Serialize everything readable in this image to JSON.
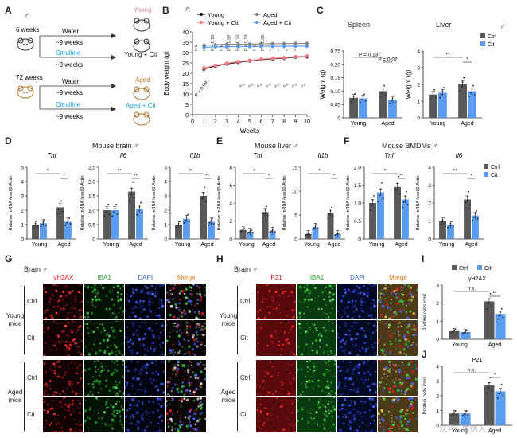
{
  "symbols": {
    "male": "♂"
  },
  "colors": {
    "ctrl": "#595959",
    "cit": "#5b9bf0",
    "young": "#111111",
    "aged": "#888888",
    "young_cit": "#f07a80",
    "aged_cit": "#5b9bf0",
    "cit_text": "#1aa3e0",
    "young_pink": "#f2879a",
    "aged_brown": "#b0742a"
  },
  "panelA": {
    "label": "A",
    "g1": {
      "age": "6 weeks",
      "water": "Water",
      "w1": "~9 weeks",
      "cit": "Citrulline",
      "w2": "~9 weeks",
      "out1": "Young",
      "out2": "Young + Cit"
    },
    "g2": {
      "age": "72 weeks",
      "water": "Water",
      "w1": "~9 weeks",
      "cit": "Citrulline",
      "w2": "~9 weeks",
      "out1": "Aged",
      "out2": "Aged + Cit"
    }
  },
  "panelB": {
    "label": "B",
    "ylabel": "Body weight (g)",
    "xlabel": "Weeks",
    "legend": [
      "Young",
      "Aged",
      "Young + Cit",
      "Aged + Cit"
    ],
    "p_low": "P = 0.09",
    "p_top": [
      "n.s.",
      "n.s.",
      "P = 0.10",
      "n.s.",
      "P = 0.07",
      "P = 0.10",
      "P = 0.13",
      "n.s.",
      "P = 0.05",
      "*",
      "*",
      "*",
      "*"
    ],
    "p_mid": [
      "n.s.",
      "n.s.",
      "n.s.",
      "n.s.",
      "n.s.",
      "n.s.",
      "n.s.",
      "n.s."
    ]
  },
  "panelC": {
    "label": "C",
    "t1": "Spleen",
    "t2": "Liver",
    "ylabel": "Weight (g)",
    "p1": "P = 0.13",
    "p2": "P = 0.07",
    "s1": "**",
    "s2": "*",
    "legend": [
      "Ctrl",
      "Cit"
    ],
    "xcats": [
      "Young",
      "Aged"
    ]
  },
  "panelD": {
    "label": "D",
    "title": "Mouse brain",
    "genes": [
      "Tnf",
      "Il6",
      "Il1b"
    ],
    "ylabel": "Relative mRNA level/β-Actin",
    "xcats": [
      "Young",
      "Aged"
    ],
    "stars": [
      [
        "*",
        "*"
      ],
      [
        "**",
        "**"
      ],
      [
        "**",
        "**"
      ]
    ]
  },
  "panelE": {
    "label": "E",
    "title": "Mouse liver",
    "genes": [
      "Tnf",
      "Il1b"
    ],
    "ylabel": "Relative mRNA level/β-Actin",
    "xcats": [
      "Young",
      "Aged"
    ],
    "stars": [
      [
        "*",
        "*"
      ],
      [
        "*",
        "*"
      ]
    ]
  },
  "panelF": {
    "label": "F",
    "title": "Mouse BMDMs",
    "genes": [
      "Tnf",
      "Il6"
    ],
    "ylabel": "Relative mRNA level/β-Actin",
    "xcats": [
      "Young",
      "Aged"
    ],
    "stars": [
      [
        "***",
        "**"
      ],
      [
        "**",
        "*"
      ]
    ],
    "legend": [
      "Ctrl",
      "Cit"
    ]
  },
  "panelG": {
    "label": "G",
    "title": "Brain",
    "cols": [
      "γH2AX",
      "IBA1",
      "DAPI",
      "Merge"
    ],
    "groups": [
      "Young\nmice",
      "Aged\nmice"
    ],
    "rows": [
      "Ctrl",
      "Cit",
      "Ctrl",
      "Cit"
    ]
  },
  "panelH": {
    "label": "H",
    "title": "Brain",
    "cols": [
      "P21",
      "IBA1",
      "DAPI",
      "Merge"
    ],
    "groups": [
      "Young\nmice",
      "Aged\nmice"
    ],
    "rows": [
      "Ctrl",
      "Cit",
      "Ctrl",
      "Cit"
    ]
  },
  "panelI": {
    "label": "I",
    "title": "γH2AX",
    "ylabel": "Postive cells /cm²",
    "legend": [
      "Ctrl",
      "Cit"
    ],
    "xcats": [
      "Young",
      "Aged"
    ],
    "ns": "n.s.",
    "star": "**"
  },
  "panelJ": {
    "label": "J",
    "title": "P21",
    "ylabel": "Postive cells /cm²",
    "xcats": [
      "Young",
      "Aged"
    ],
    "ns": "n.s.",
    "star": "*"
  },
  "watermark": "众号 · 生信人",
  "chart_data": [
    {
      "type": "line",
      "id": "B",
      "x": [
        1,
        2,
        3,
        4,
        5,
        6,
        7,
        8,
        9,
        10
      ],
      "ylim": [
        0,
        40
      ],
      "xlim": [
        0,
        10
      ],
      "series": [
        {
          "name": "Young",
          "values": [
            22.0,
            23.5,
            24.5,
            25.3,
            26.0,
            26.6,
            27.0,
            27.3,
            27.8,
            28.0
          ]
        },
        {
          "name": "Aged",
          "values": [
            33.5,
            33.8,
            34.0,
            34.0,
            34.1,
            34.2,
            34.3,
            34.3,
            34.4,
            34.4
          ]
        },
        {
          "name": "Young + Cit",
          "values": [
            22.5,
            23.8,
            24.8,
            25.6,
            26.2,
            26.8,
            27.2,
            27.5,
            28.0,
            28.3
          ]
        },
        {
          "name": "Aged + Cit",
          "values": [
            32.5,
            32.8,
            32.8,
            32.9,
            32.9,
            33.0,
            33.0,
            33.0,
            33.1,
            33.1
          ]
        }
      ]
    },
    {
      "type": "bar",
      "id": "C-spleen",
      "categories": [
        "Young",
        "Aged"
      ],
      "ylim": [
        0,
        0.25
      ],
      "ticks": [
        0,
        0.05,
        0.1,
        0.15,
        0.2,
        0.25
      ],
      "series": [
        {
          "name": "Ctrl",
          "values": [
            0.075,
            0.1
          ]
        },
        {
          "name": "Cit",
          "values": [
            0.073,
            0.068
          ]
        }
      ]
    },
    {
      "type": "bar",
      "id": "C-liver",
      "categories": [
        "Young",
        "Aged"
      ],
      "ylim": [
        0,
        4
      ],
      "ticks": [
        0,
        1,
        2,
        3,
        4
      ],
      "series": [
        {
          "name": "Ctrl",
          "values": [
            1.4,
            2.0
          ]
        },
        {
          "name": "Cit",
          "values": [
            1.5,
            1.6
          ]
        }
      ]
    },
    {
      "type": "bar",
      "id": "D-Tnf",
      "categories": [
        "Young",
        "Aged"
      ],
      "ylim": [
        0,
        5
      ],
      "ticks": [
        0,
        1,
        2,
        3,
        4,
        5
      ],
      "series": [
        {
          "name": "Ctrl",
          "values": [
            1.0,
            2.2
          ]
        },
        {
          "name": "Cit",
          "values": [
            1.1,
            1.2
          ]
        }
      ]
    },
    {
      "type": "bar",
      "id": "D-Il6",
      "categories": [
        "Young",
        "Aged"
      ],
      "ylim": [
        0,
        2.5
      ],
      "ticks": [
        0,
        0.5,
        1.0,
        1.5,
        2.0,
        2.5
      ],
      "series": [
        {
          "name": "Ctrl",
          "values": [
            1.0,
            1.65
          ]
        },
        {
          "name": "Cit",
          "values": [
            1.0,
            1.05
          ]
        }
      ]
    },
    {
      "type": "bar",
      "id": "D-Il1b",
      "categories": [
        "Young",
        "Aged"
      ],
      "ylim": [
        0,
        5
      ],
      "ticks": [
        0,
        1,
        2,
        3,
        4,
        5
      ],
      "series": [
        {
          "name": "Ctrl",
          "values": [
            1.0,
            3.0
          ]
        },
        {
          "name": "Cit",
          "values": [
            1.4,
            1.2
          ]
        }
      ]
    },
    {
      "type": "bar",
      "id": "E-Tnf",
      "categories": [
        "Young",
        "Aged"
      ],
      "ylim": [
        0,
        8
      ],
      "ticks": [
        0,
        2,
        4,
        6,
        8
      ],
      "series": [
        {
          "name": "Ctrl",
          "values": [
            1.0,
            3.0
          ]
        },
        {
          "name": "Cit",
          "values": [
            0.8,
            0.9
          ]
        }
      ]
    },
    {
      "type": "bar",
      "id": "E-Il1b",
      "categories": [
        "Young",
        "Aged"
      ],
      "ylim": [
        0,
        15
      ],
      "ticks": [
        0,
        5,
        10,
        15
      ],
      "series": [
        {
          "name": "Ctrl",
          "values": [
            1.0,
            5.5
          ]
        },
        {
          "name": "Cit",
          "values": [
            2.5,
            1.0
          ]
        }
      ]
    },
    {
      "type": "bar",
      "id": "F-Tnf",
      "categories": [
        "Young",
        "Aged"
      ],
      "ylim": [
        0,
        2.0
      ],
      "ticks": [
        0,
        0.5,
        1.0,
        1.5,
        2.0
      ],
      "series": [
        {
          "name": "Ctrl",
          "values": [
            1.0,
            1.45
          ]
        },
        {
          "name": "Cit",
          "values": [
            1.3,
            1.1
          ]
        }
      ]
    },
    {
      "type": "bar",
      "id": "F-Il6",
      "categories": [
        "Young",
        "Aged"
      ],
      "ylim": [
        0,
        4
      ],
      "ticks": [
        0,
        1,
        2,
        3,
        4
      ],
      "series": [
        {
          "name": "Ctrl",
          "values": [
            1.0,
            2.2
          ]
        },
        {
          "name": "Cit",
          "values": [
            0.8,
            1.3
          ]
        }
      ]
    },
    {
      "type": "bar",
      "id": "I",
      "categories": [
        "Young",
        "Aged"
      ],
      "ylim": [
        0,
        3
      ],
      "ticks": [
        0,
        1,
        2,
        3
      ],
      "series": [
        {
          "name": "Ctrl",
          "values": [
            0.45,
            2.1
          ]
        },
        {
          "name": "Cit",
          "values": [
            0.4,
            1.4
          ]
        }
      ]
    },
    {
      "type": "bar",
      "id": "J",
      "categories": [
        "Young",
        "Aged"
      ],
      "ylim": [
        0,
        4
      ],
      "ticks": [
        0,
        1,
        2,
        3,
        4
      ],
      "series": [
        {
          "name": "Ctrl",
          "values": [
            0.8,
            2.7
          ]
        },
        {
          "name": "Cit",
          "values": [
            0.8,
            2.3
          ]
        }
      ]
    }
  ]
}
